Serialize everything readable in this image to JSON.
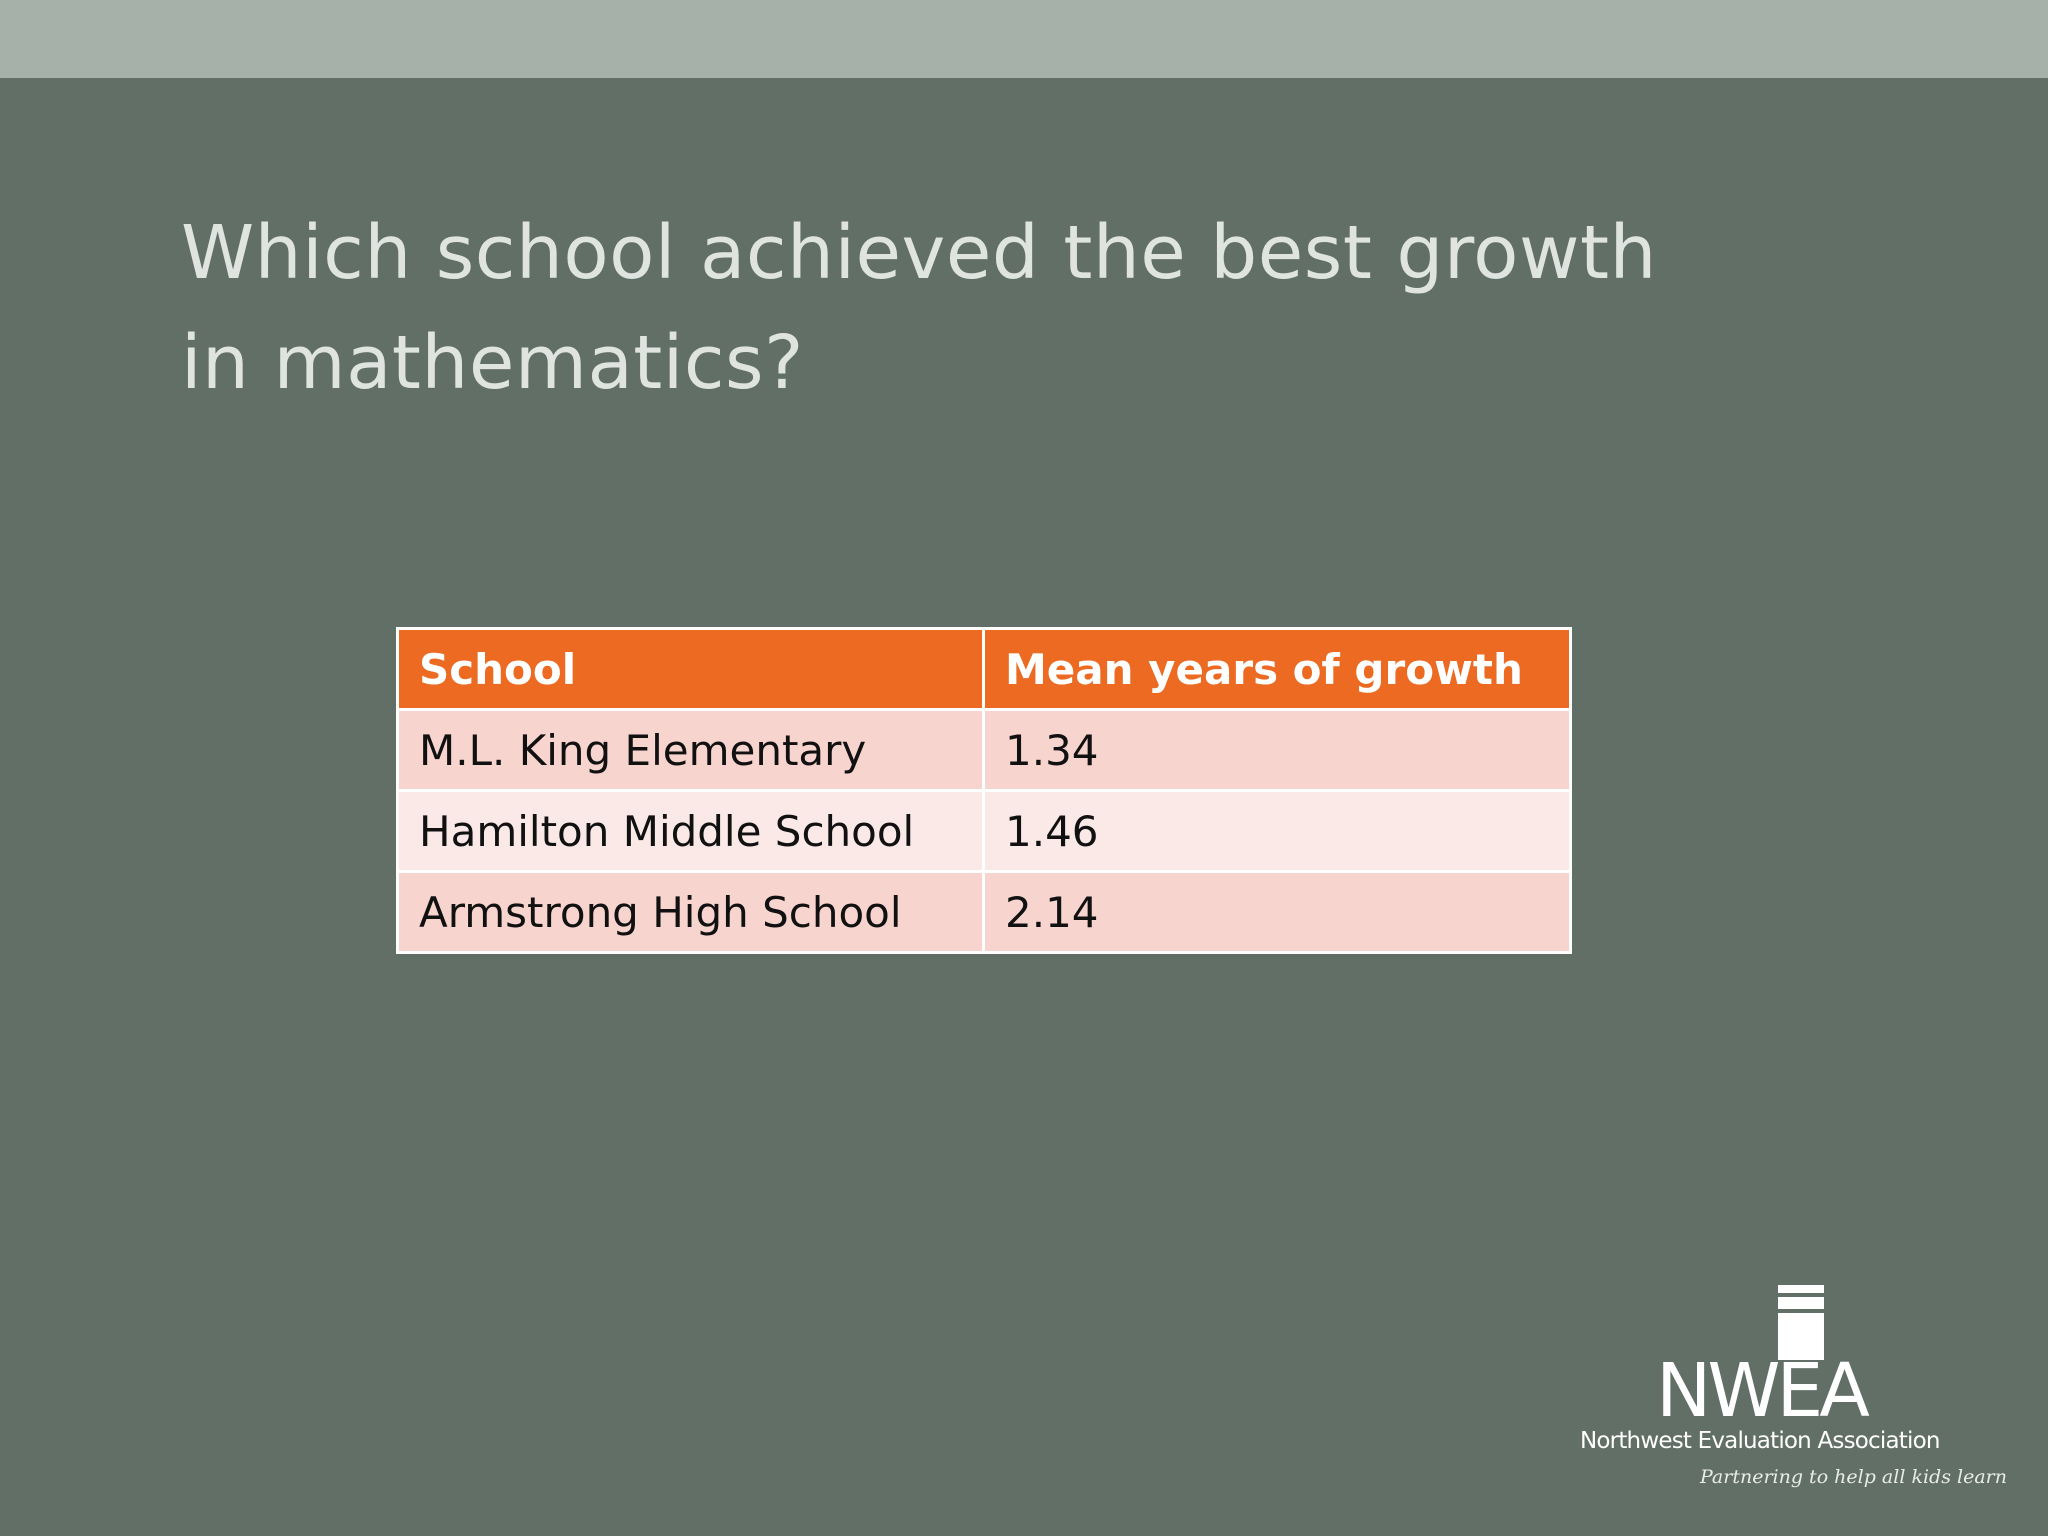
{
  "slide": {
    "title_lines": [
      "Which school achieved the best growth",
      "in mathematics?"
    ],
    "colors": {
      "background": "#626f66",
      "top_band": "#a6b1aa",
      "header_fill": "#ec6a22",
      "row_odd": "#f8d4ce",
      "row_even": "#fbe9e7"
    }
  },
  "table": {
    "headers": [
      "School",
      "Mean years of growth"
    ],
    "rows": [
      [
        "M.L. King Elementary",
        "1.34"
      ],
      [
        "Hamilton Middle School",
        "1.46"
      ],
      [
        "Armstrong High School",
        "2.14"
      ]
    ]
  },
  "logo": {
    "name": "NWEA",
    "org": "Northwest Evaluation Association",
    "tagline": "Partnering to help all kids learn"
  }
}
